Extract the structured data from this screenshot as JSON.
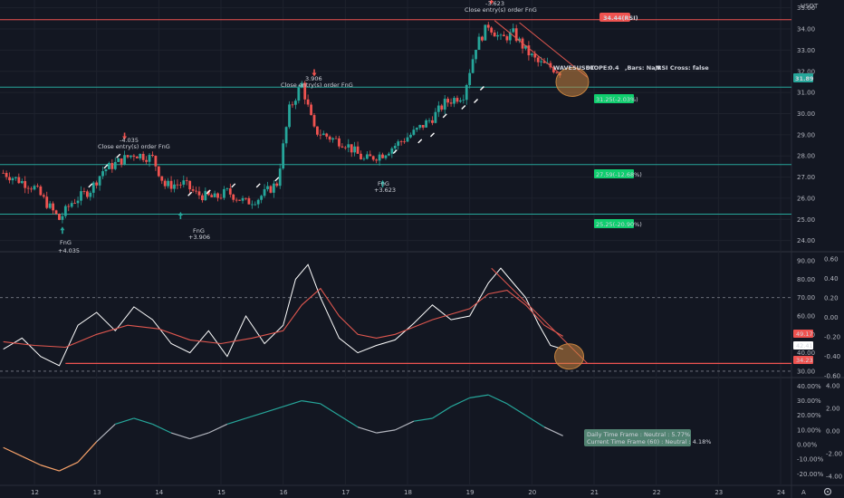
{
  "symbol_info": {
    "label": "WAVESUSDT",
    "slope_label": "SLOPE:",
    "slope_value": "0.4",
    "bars_text": ",Bars: NaN",
    "rsi_cross_text": ",RSI Cross: false"
  },
  "currency": "USDT",
  "price_badges": {
    "top": "34.44(RSI)",
    "last": "31.89"
  },
  "level_labels": [
    "31.25(-2.03%)",
    "27.59(-12.68%)",
    "25.25(-20.90%)"
  ],
  "trade_annotations": [
    {
      "value": "-4.035",
      "text": "Close entry(s) order FnG"
    },
    {
      "value": "3.906",
      "text": "Close entry(s) order FnG"
    },
    {
      "value": "-3.623",
      "text": "Close entry(s) order FnG"
    }
  ],
  "entry_annotations": [
    {
      "label": "FnG",
      "value": "+4.035"
    },
    {
      "label": "FnG",
      "value": "+3.906"
    },
    {
      "label": "FnG",
      "value": "+3.623"
    }
  ],
  "rsi_badges": {
    "red": "49.17",
    "white": "42.41",
    "line": "34.23"
  },
  "info_box": {
    "line1": "Daily Time Frame : Neutral : 5.77%",
    "line2": "Current Time Frame (60) : Neutral : 4.18%"
  },
  "footer_label": "A",
  "colors": {
    "background": "#131722",
    "up_candle": "#26a69a",
    "down_candle": "#ef5350",
    "support_line": "#26a69a",
    "resistance_line": "#ef5350",
    "rsi_line": "#ffffff",
    "rsi_ma": "#e0574f",
    "highlight_circle": "#c8843f",
    "osc_teal": "#26a69a",
    "osc_orange": "#f7a26a"
  },
  "chart_data": [
    {
      "type": "line",
      "title": "WAVESUSDT",
      "y_axis_ticks": [
        "35.00",
        "34.00",
        "33.00",
        "32.00",
        "31.00",
        "30.00",
        "29.00",
        "28.00",
        "27.00",
        "26.00",
        "25.00",
        "24.00"
      ],
      "ylim": [
        23.6,
        35.2
      ],
      "x_axis_ticks": [
        "12",
        "13",
        "14",
        "15",
        "16",
        "17",
        "18",
        "19",
        "20",
        "21",
        "22",
        "23",
        "24"
      ],
      "horizontal_levels": [
        34.44,
        31.25,
        27.59,
        25.25
      ],
      "close_series": {
        "x": [
          11.5,
          12.0,
          12.4,
          12.6,
          12.9,
          13.1,
          13.4,
          13.6,
          13.9,
          14.1,
          14.4,
          14.6,
          14.9,
          15.1,
          15.4,
          15.6,
          15.9,
          16.1,
          16.3,
          16.5,
          16.8,
          17.0,
          17.3,
          17.6,
          17.9,
          18.1,
          18.4,
          18.6,
          18.9,
          19.1,
          19.3,
          19.5,
          19.7,
          19.9,
          20.1,
          20.3,
          20.5
        ],
        "values": [
          27.2,
          26.5,
          25.0,
          25.8,
          26.4,
          27.3,
          27.8,
          28.1,
          27.9,
          26.6,
          26.7,
          26.2,
          26.0,
          26.3,
          25.8,
          26.0,
          26.7,
          30.2,
          31.4,
          29.2,
          28.8,
          28.6,
          27.8,
          28.1,
          28.7,
          29.1,
          29.8,
          30.5,
          30.9,
          33.2,
          34.2,
          33.5,
          33.8,
          33.0,
          32.4,
          32.2,
          31.9
        ]
      }
    },
    {
      "type": "line",
      "title": "RSI",
      "y_axis_ticks": [
        "90.00",
        "80.00",
        "70.00",
        "60.00",
        "50.00",
        "40.00",
        "30.00"
      ],
      "right_axis_ticks": [
        "0.60",
        "0.40",
        "0.20",
        "0.00",
        "-0.20",
        "-0.40",
        "-0.60"
      ],
      "ylim": [
        28,
        93
      ],
      "levels": [
        70,
        30,
        34.23
      ],
      "series": [
        {
          "values_x": [
            11.5,
            11.8,
            12.1,
            12.4,
            12.7,
            13.0,
            13.3,
            13.6,
            13.9,
            14.2,
            14.5,
            14.8,
            15.1,
            15.4,
            15.7,
            16.0,
            16.2,
            16.4,
            16.6,
            16.9,
            17.2,
            17.5,
            17.8,
            18.1,
            18.4,
            18.7,
            19.0,
            19.3,
            19.5,
            19.7,
            19.9,
            20.1,
            20.3,
            20.5
          ],
          "values": [
            42,
            48,
            38,
            33,
            55,
            62,
            52,
            65,
            58,
            45,
            40,
            52,
            38,
            60,
            45,
            55,
            80,
            88,
            70,
            48,
            40,
            44,
            47,
            56,
            66,
            58,
            60,
            78,
            86,
            78,
            70,
            56,
            44,
            42
          ]
        },
        {
          "values_x": [
            11.5,
            12.0,
            12.5,
            13.0,
            13.5,
            14.0,
            14.5,
            15.0,
            15.5,
            16.0,
            16.3,
            16.6,
            16.9,
            17.2,
            17.5,
            17.8,
            18.1,
            18.4,
            18.7,
            19.0,
            19.3,
            19.6,
            19.9,
            20.2,
            20.5
          ],
          "values": [
            46,
            44,
            43,
            50,
            55,
            53,
            47,
            45,
            48,
            52,
            66,
            75,
            60,
            50,
            48,
            50,
            54,
            58,
            61,
            64,
            72,
            74,
            66,
            55,
            49
          ]
        }
      ]
    },
    {
      "type": "line",
      "title": "Oscillator",
      "y_axis_ticks": [
        "40.00%",
        "30.00%",
        "20.00%",
        "10.00%",
        "0.00%",
        "-10.00%",
        "-20.00%"
      ],
      "right_axis_ticks": [
        "4.00",
        "2.00",
        "0.00",
        "-2.00",
        "-4.00"
      ],
      "ylim": [
        -26,
        44
      ],
      "series": [
        {
          "values_x": [
            11.5,
            11.8,
            12.1,
            12.4,
            12.7,
            13.0,
            13.3,
            13.6,
            13.9,
            14.2,
            14.5,
            14.8,
            15.1,
            15.4,
            15.7,
            16.0,
            16.3,
            16.6,
            16.9,
            17.2,
            17.5,
            17.8,
            18.1,
            18.4,
            18.7,
            19.0,
            19.3,
            19.6,
            19.9,
            20.2,
            20.5
          ],
          "values": [
            -2,
            -8,
            -14,
            -18,
            -12,
            2,
            14,
            18,
            14,
            8,
            4,
            8,
            14,
            18,
            22,
            26,
            30,
            28,
            20,
            12,
            8,
            10,
            16,
            18,
            26,
            32,
            34,
            28,
            20,
            12,
            6
          ]
        }
      ]
    }
  ]
}
